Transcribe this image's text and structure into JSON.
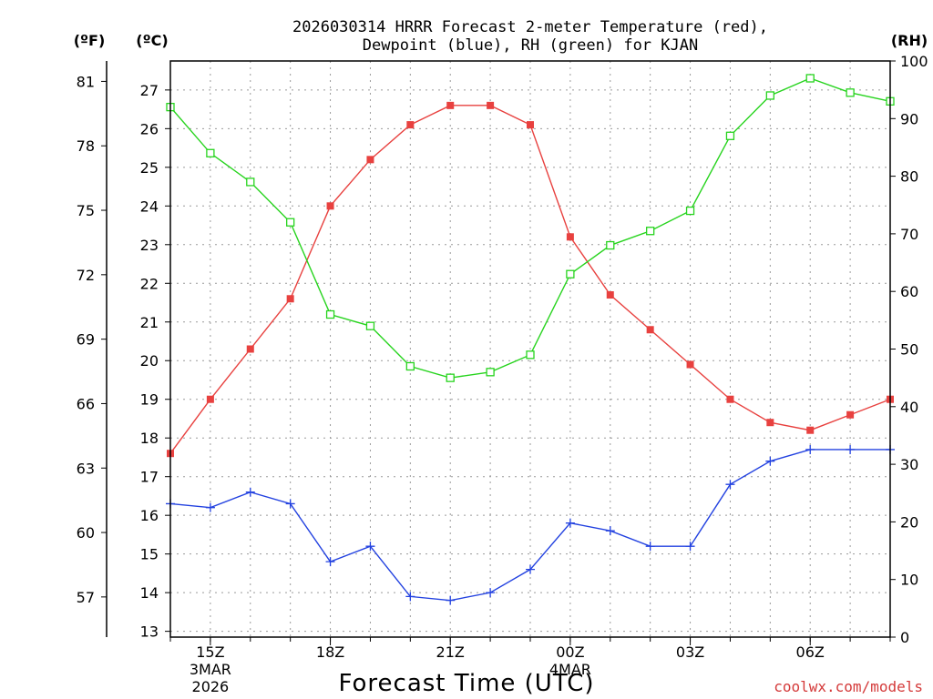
{
  "chart_data": {
    "type": "line",
    "title_line1": "2026030314 HRRR Forecast 2-meter Temperature (red),",
    "title_line2": "Dewpoint (blue), RH (green) for KJAN",
    "xlabel": "Forecast Time (UTC)",
    "units": {
      "fahrenheit": "(ºF)",
      "celsius": "(ºC)",
      "rh": "(RH)"
    },
    "credit": "coolwx.com/models",
    "colors": {
      "temperature": "#e8413f",
      "dewpoint": "#2342e0",
      "rh": "#27d41e"
    },
    "hours_from_14z": [
      0,
      1,
      2,
      3,
      4,
      5,
      6,
      7,
      8,
      9,
      10,
      11,
      12,
      13,
      14,
      15,
      16,
      17,
      18
    ],
    "x_ticks": [
      {
        "hour": 1,
        "label": "15Z",
        "date1": "3MAR",
        "date2": "2026"
      },
      {
        "hour": 4,
        "label": "18Z"
      },
      {
        "hour": 7,
        "label": "21Z"
      },
      {
        "hour": 10,
        "label": "00Z",
        "date1": "4MAR"
      },
      {
        "hour": 13,
        "label": "03Z"
      },
      {
        "hour": 16,
        "label": "06Z"
      }
    ],
    "xlim": [
      0,
      18
    ],
    "celsius_axis": {
      "ylim": [
        12.85,
        27.75
      ],
      "ticks": [
        13,
        14,
        15,
        16,
        17,
        18,
        19,
        20,
        21,
        22,
        23,
        24,
        25,
        26,
        27
      ]
    },
    "fahrenheit_axis": {
      "ticks": [
        57,
        60,
        63,
        66,
        69,
        72,
        75,
        78,
        81
      ]
    },
    "rh_axis": {
      "ylim": [
        0,
        100
      ],
      "ticks": [
        0,
        10,
        20,
        30,
        40,
        50,
        60,
        70,
        80,
        90,
        100
      ]
    },
    "series": [
      {
        "name": "Temperature (°C)",
        "axis": "celsius",
        "values": [
          17.6,
          19.0,
          20.3,
          21.6,
          24.0,
          25.2,
          26.1,
          26.6,
          26.6,
          26.1,
          23.2,
          21.7,
          20.8,
          19.9,
          19.0,
          18.4,
          18.2,
          18.6,
          19.0
        ]
      },
      {
        "name": "Dewpoint (°C)",
        "axis": "celsius",
        "values": [
          16.3,
          16.2,
          16.6,
          16.3,
          14.8,
          15.2,
          13.9,
          13.8,
          14.0,
          14.6,
          15.8,
          15.6,
          15.2,
          15.2,
          16.8,
          17.4,
          17.7,
          17.7,
          17.7
        ]
      },
      {
        "name": "RH (%)",
        "axis": "rh",
        "values": [
          92,
          84,
          79,
          72,
          56,
          54,
          47,
          45,
          46,
          49,
          63,
          68,
          70.5,
          74,
          87,
          94,
          97,
          94.5,
          93
        ]
      }
    ]
  }
}
